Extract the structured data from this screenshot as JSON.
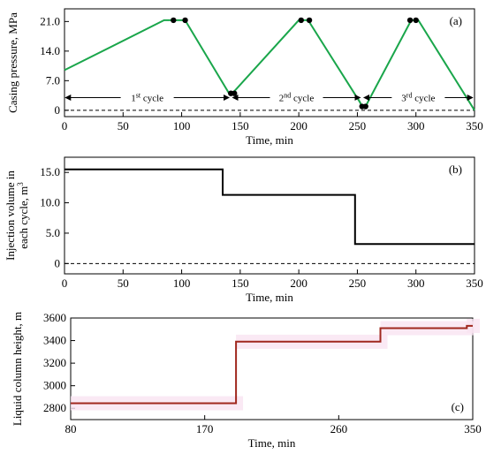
{
  "chart_data": [
    {
      "type": "line",
      "panel_label": "(a)",
      "xlabel": "Time, min",
      "ylabel": "Casing pressure, MPa",
      "xlim": [
        0,
        350
      ],
      "ylim": [
        -1.5,
        24
      ],
      "xticks": [
        "0",
        "50",
        "100",
        "150",
        "200",
        "250",
        "300",
        "350"
      ],
      "yticks": [
        "0",
        "7.0",
        "14.0",
        "21.0"
      ],
      "series": [
        {
          "color": "#1aa64b",
          "x": [
            0,
            85,
            93,
            103,
            140,
            142,
            144,
            200,
            204,
            208,
            252,
            254,
            257,
            260,
            296,
            299,
            302,
            350
          ],
          "y": [
            9.5,
            21.3,
            21.3,
            21.3,
            4.2,
            4.0,
            4.2,
            21.3,
            21.3,
            21.3,
            2.0,
            0.9,
            0.9,
            2.5,
            21.3,
            21.3,
            21.3,
            0.0
          ]
        }
      ],
      "markers": [
        {
          "x": 93,
          "y": 21.3
        },
        {
          "x": 103,
          "y": 21.3
        },
        {
          "x": 142,
          "y": 4.0
        },
        {
          "x": 145,
          "y": 4.0
        },
        {
          "x": 202,
          "y": 21.3
        },
        {
          "x": 209,
          "y": 21.3
        },
        {
          "x": 254,
          "y": 0.9
        },
        {
          "x": 257,
          "y": 0.9
        },
        {
          "x": 295,
          "y": 21.3
        },
        {
          "x": 300,
          "y": 21.3
        }
      ],
      "zero_line": {
        "y": 0,
        "style": "dashed"
      },
      "cycles": [
        {
          "label_main": "1",
          "label_sup": "st",
          "label_tail": " cycle",
          "from": 0,
          "to": 142
        },
        {
          "label_main": "2",
          "label_sup": "nd",
          "label_tail": " cycle",
          "from": 142,
          "to": 254
        },
        {
          "label_main": "3",
          "label_sup": "rd",
          "label_tail": " cycle",
          "from": 254,
          "to": 350
        }
      ]
    },
    {
      "type": "line",
      "panel_label": "(b)",
      "xlabel": "Time,  min",
      "ylabel_line1": "Injection volume  in",
      "ylabel_line2": "each cycle, m",
      "ylabel_sup": "3",
      "xlim": [
        0,
        350
      ],
      "ylim": [
        -1.7,
        17.5
      ],
      "xticks": [
        "0",
        "50",
        "100",
        "150",
        "200",
        "250",
        "300",
        "350"
      ],
      "yticks": [
        "0",
        "5.0",
        "10.0",
        "15.0"
      ],
      "series": [
        {
          "color": "#000000",
          "x": [
            0,
            135,
            135,
            248,
            248,
            350
          ],
          "y": [
            15.5,
            15.5,
            11.3,
            11.3,
            3.2,
            3.2
          ]
        }
      ],
      "zero_line": {
        "y": 0,
        "style": "dashed"
      }
    },
    {
      "type": "line",
      "panel_label": "(c)",
      "xlabel": "Time,  min",
      "ylabel": "Liquid  column height, m",
      "xlim": [
        80,
        350
      ],
      "ylim": [
        2700,
        3600
      ],
      "xticks": [
        "80",
        "170",
        "260",
        "350"
      ],
      "yticks": [
        "2800",
        "3000",
        "3200",
        "3400",
        "3600"
      ],
      "series": [
        {
          "color": "#a0281e",
          "x": [
            80,
            191,
            191,
            288,
            288,
            346,
            346,
            350
          ],
          "y": [
            2845,
            2845,
            3390,
            3390,
            3510,
            3510,
            3530,
            3530
          ]
        }
      ]
    }
  ]
}
